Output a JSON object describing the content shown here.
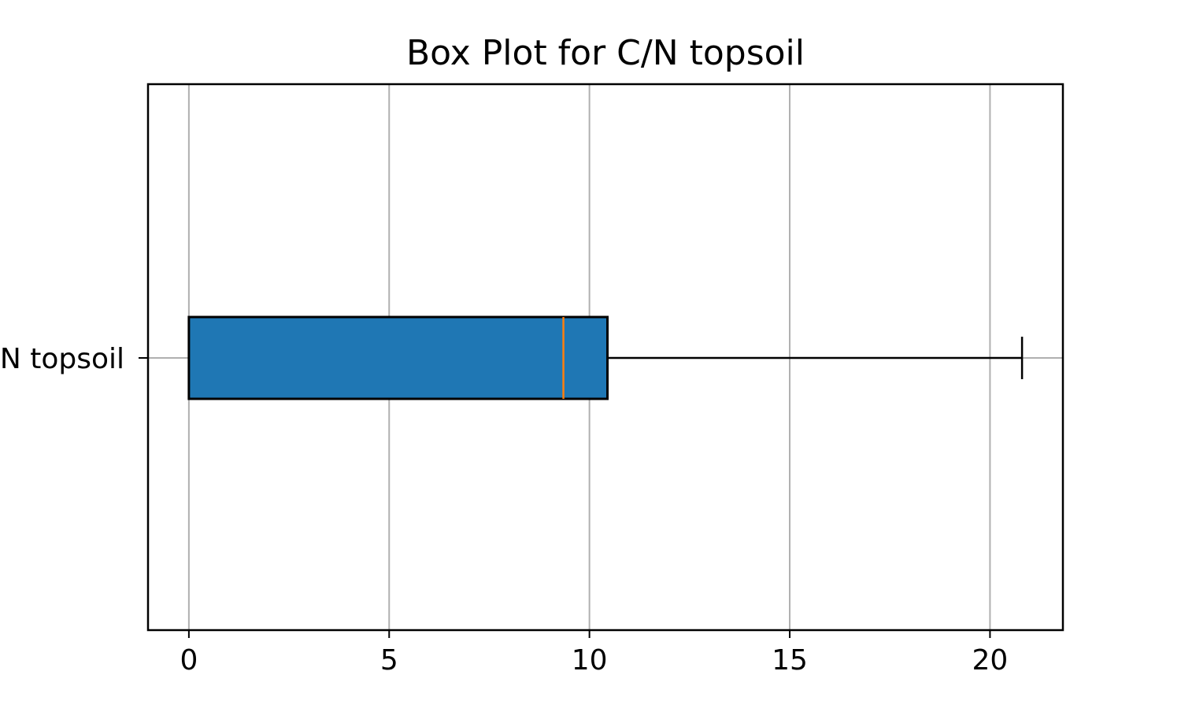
{
  "chart_data": {
    "type": "boxplot",
    "title": "Box Plot for C/N topsoil",
    "xlabel": "",
    "ylabel": "",
    "orientation": "horizontal",
    "categories": [
      "C/N topsoil"
    ],
    "series": [
      {
        "whisker_low": 0,
        "q1": 0,
        "median": 9.35,
        "q3": 10.45,
        "whisker_high": 20.8
      }
    ],
    "xlim": [
      -1.02,
      21.82
    ],
    "xticks": [
      0,
      5,
      10,
      15,
      20
    ],
    "xtick_labels": [
      "0",
      "5",
      "10",
      "15",
      "20"
    ],
    "grid": true,
    "colors": {
      "box_fill": "#1f77b4",
      "box_edge": "#000000",
      "median": "#ff7f0e",
      "whisker": "#000000",
      "grid": "#b0b0b0"
    }
  }
}
